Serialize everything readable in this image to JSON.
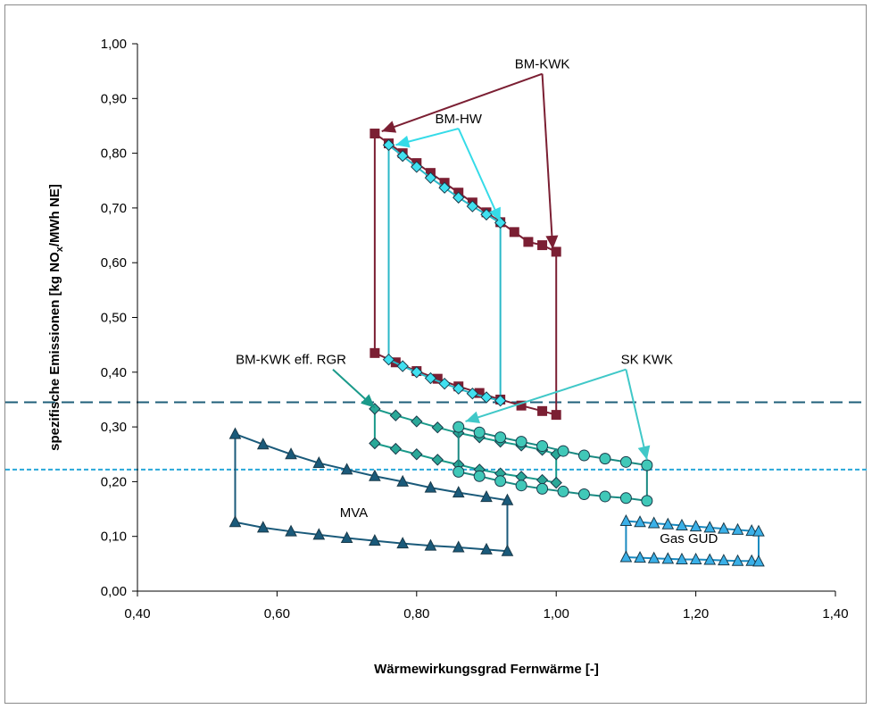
{
  "chart_data": {
    "type": "scatter",
    "title": "",
    "xlabel": "Wärmewirkungsgrad Fernwärme [-]",
    "ylabel_parts": {
      "pre": "spezifische Emissionen [kg NO",
      "sub": "x",
      "post": "/MWh NE]"
    },
    "xlim": [
      0.4,
      1.4
    ],
    "ylim": [
      0.0,
      1.0
    ],
    "xticks": [
      "0,40",
      "0,60",
      "0,80",
      "1,00",
      "1,20",
      "1,40"
    ],
    "yticks": [
      "0,00",
      "0,10",
      "0,20",
      "0,30",
      "0,40",
      "0,50",
      "0,60",
      "0,70",
      "0,80",
      "0,90",
      "1,00"
    ],
    "grid": false,
    "reference_lines": [
      {
        "y": 0.345,
        "style": "long-dash",
        "color": "#1f5f7a"
      },
      {
        "y": 0.222,
        "style": "short-dash",
        "color": "#29a8d9"
      }
    ],
    "series": [
      {
        "marker": "square",
        "color": "#7b1f33",
        "fill": "#7b1f33",
        "upper": {
          "x": [
            0.74,
            0.76,
            0.78,
            0.8,
            0.82,
            0.84,
            0.86,
            0.88,
            0.9,
            0.92,
            0.94,
            0.96,
            0.98,
            1.0
          ],
          "y": [
            0.836,
            0.818,
            0.8,
            0.782,
            0.764,
            0.746,
            0.728,
            0.71,
            0.692,
            0.674,
            0.656,
            0.638,
            0.632,
            0.62
          ]
        },
        "lower": {
          "x": [
            0.74,
            0.77,
            0.8,
            0.83,
            0.86,
            0.89,
            0.92,
            0.95,
            0.98,
            1.0
          ],
          "y": [
            0.435,
            0.418,
            0.402,
            0.388,
            0.374,
            0.362,
            0.35,
            0.339,
            0.329,
            0.322
          ]
        }
      },
      {
        "marker": "diamond",
        "color": "#2ab8c8",
        "fill": "#40e0f0",
        "upper": {
          "x": [
            0.76,
            0.78,
            0.8,
            0.82,
            0.84,
            0.86,
            0.88,
            0.9,
            0.92
          ],
          "y": [
            0.815,
            0.795,
            0.775,
            0.755,
            0.737,
            0.719,
            0.703,
            0.688,
            0.673
          ]
        },
        "lower": {
          "x": [
            0.76,
            0.78,
            0.8,
            0.82,
            0.84,
            0.86,
            0.88,
            0.9,
            0.92
          ],
          "y": [
            0.423,
            0.411,
            0.4,
            0.389,
            0.379,
            0.37,
            0.361,
            0.354,
            0.348
          ]
        }
      },
      {
        "marker": "diamond",
        "color": "#1a9a8a",
        "fill": "#2aa898",
        "upper": {
          "x": [
            0.74,
            0.77,
            0.8,
            0.83,
            0.86,
            0.89,
            0.92,
            0.95,
            0.98,
            1.0
          ],
          "y": [
            0.333,
            0.321,
            0.31,
            0.299,
            0.289,
            0.281,
            0.273,
            0.266,
            0.258,
            0.25
          ]
        },
        "lower": {
          "x": [
            0.74,
            0.77,
            0.8,
            0.83,
            0.86,
            0.89,
            0.92,
            0.95,
            0.98,
            1.0
          ],
          "y": [
            0.27,
            0.26,
            0.25,
            0.24,
            0.231,
            0.222,
            0.215,
            0.209,
            0.203,
            0.198
          ]
        }
      },
      {
        "marker": "circle",
        "color": "#1a8a82",
        "fill": "#40c8b8",
        "upper": {
          "x": [
            0.86,
            0.89,
            0.92,
            0.95,
            0.98,
            1.01,
            1.04,
            1.07,
            1.1,
            1.13
          ],
          "y": [
            0.3,
            0.29,
            0.281,
            0.273,
            0.265,
            0.256,
            0.248,
            0.242,
            0.236,
            0.23
          ]
        },
        "lower": {
          "x": [
            0.86,
            0.89,
            0.92,
            0.95,
            0.98,
            1.01,
            1.04,
            1.07,
            1.1,
            1.13
          ],
          "y": [
            0.218,
            0.21,
            0.201,
            0.193,
            0.187,
            0.182,
            0.177,
            0.173,
            0.17,
            0.165
          ]
        }
      },
      {
        "marker": "triangle",
        "color": "#1a5a7a",
        "fill": "#1a5a7a",
        "upper": {
          "x": [
            0.54,
            0.58,
            0.62,
            0.66,
            0.7,
            0.74,
            0.78,
            0.82,
            0.86,
            0.9,
            0.93
          ],
          "y": [
            0.287,
            0.268,
            0.25,
            0.234,
            0.222,
            0.21,
            0.2,
            0.189,
            0.18,
            0.172,
            0.166
          ]
        },
        "lower": {
          "x": [
            0.54,
            0.58,
            0.62,
            0.66,
            0.7,
            0.74,
            0.78,
            0.82,
            0.86,
            0.9,
            0.93
          ],
          "y": [
            0.126,
            0.116,
            0.109,
            0.103,
            0.097,
            0.092,
            0.087,
            0.083,
            0.08,
            0.076,
            0.073
          ]
        }
      },
      {
        "marker": "triangle",
        "color": "#1a8ac0",
        "fill": "#3ab0e8",
        "upper": {
          "x": [
            1.1,
            1.12,
            1.14,
            1.16,
            1.18,
            1.2,
            1.22,
            1.24,
            1.26,
            1.28,
            1.29
          ],
          "y": [
            0.128,
            0.126,
            0.124,
            0.122,
            0.12,
            0.118,
            0.116,
            0.114,
            0.112,
            0.11,
            0.109
          ]
        },
        "lower": {
          "x": [
            1.1,
            1.12,
            1.14,
            1.16,
            1.18,
            1.2,
            1.22,
            1.24,
            1.26,
            1.28,
            1.29
          ],
          "y": [
            0.062,
            0.061,
            0.06,
            0.059,
            0.058,
            0.058,
            0.057,
            0.056,
            0.055,
            0.055,
            0.054
          ]
        }
      }
    ],
    "annotations": [
      {
        "text": "BM-KWK",
        "x": 0.98,
        "y": 0.955,
        "color": "#7b1f33",
        "arrows": [
          {
            "from": [
              0.98,
              0.945
            ],
            "to": [
              0.75,
              0.84
            ]
          },
          {
            "from": [
              0.98,
              0.945
            ],
            "to": [
              0.995,
              0.625
            ]
          }
        ]
      },
      {
        "text": "BM-HW",
        "x": 0.86,
        "y": 0.855,
        "color": "#35dbe8",
        "arrows": [
          {
            "from": [
              0.86,
              0.845
            ],
            "to": [
              0.77,
              0.815
            ]
          },
          {
            "from": [
              0.86,
              0.845
            ],
            "to": [
              0.92,
              0.675
            ]
          }
        ]
      },
      {
        "text": "BM-KWK eff. RGR",
        "x": 0.62,
        "y": 0.415,
        "color": "#1a9a8a",
        "arrows": [
          {
            "from": [
              0.68,
              0.405
            ],
            "to": [
              0.74,
              0.335
            ]
          }
        ]
      },
      {
        "text": "SK KWK",
        "x": 1.13,
        "y": 0.415,
        "color": "#40c8c8",
        "arrows": [
          {
            "from": [
              1.1,
              0.405
            ],
            "to": [
              0.87,
              0.31
            ]
          },
          {
            "from": [
              1.1,
              0.405
            ],
            "to": [
              1.13,
              0.24
            ]
          }
        ]
      },
      {
        "text": "MVA",
        "x": 0.71,
        "y": 0.135,
        "color": null,
        "arrows": []
      },
      {
        "text": "Gas GUD",
        "x": 1.19,
        "y": 0.088,
        "color": null,
        "arrows": []
      }
    ]
  }
}
